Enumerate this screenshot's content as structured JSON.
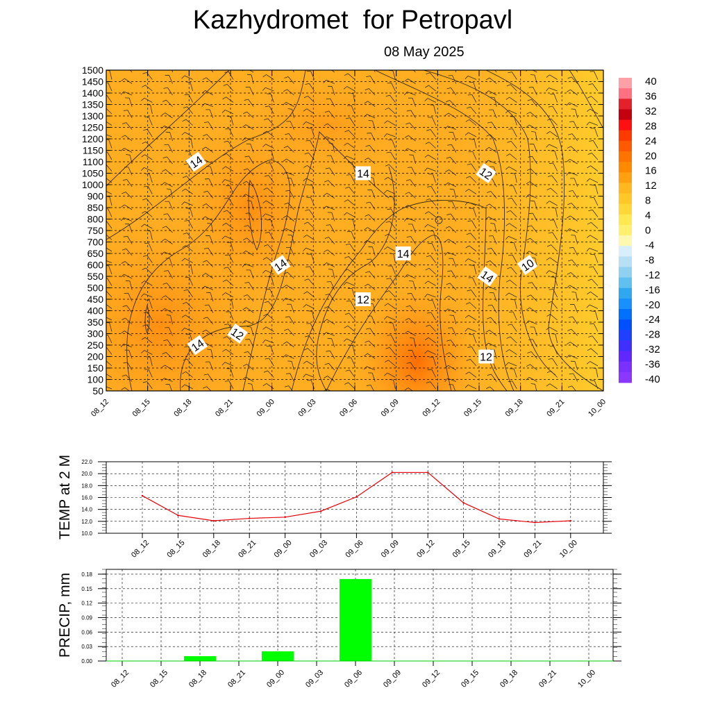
{
  "title": "Kazhydromet  for Petropavl",
  "date": "08 May 2025",
  "chart_data": [
    {
      "type": "heatmap",
      "description_type": "contour",
      "x_ticks": [
        "08_12",
        "08_15",
        "08_18",
        "08_21",
        "09_00",
        "09_03",
        "09_06",
        "09_09",
        "09_12",
        "09_15",
        "09_18",
        "09_21",
        "10_00"
      ],
      "y_ticks": [
        50,
        100,
        150,
        200,
        250,
        300,
        350,
        400,
        450,
        500,
        550,
        600,
        650,
        700,
        750,
        800,
        850,
        900,
        1000,
        1050,
        1100,
        1150,
        1200,
        1250,
        1300,
        1350,
        1400,
        1450,
        1500
      ],
      "colorbar": {
        "ticks": [
          40,
          36,
          32,
          28,
          24,
          20,
          16,
          12,
          8,
          4,
          0,
          -4,
          -8,
          -12,
          -16,
          -20,
          -24,
          -28,
          -32,
          -36,
          -40
        ],
        "colors": {
          "warm_high": "#ff6a00",
          "warm_mid": "#ffa020",
          "warm_low": "#ffd030",
          "cold": "#6633ff"
        }
      },
      "contour_labels": [
        {
          "text": "14",
          "x": "08_18",
          "y": 1100
        },
        {
          "text": "14",
          "x": "09_06",
          "y": 1050
        },
        {
          "text": "12",
          "x": "09_15",
          "y": 1050
        },
        {
          "text": "14",
          "x": "09_00",
          "y": 600
        },
        {
          "text": "14",
          "x": "09_09",
          "y": 650
        },
        {
          "text": "14",
          "x": "09_15",
          "y": 550
        },
        {
          "text": "10",
          "x": "09_18",
          "y": 600
        },
        {
          "text": "12",
          "x": "09_06",
          "y": 450
        },
        {
          "text": "12",
          "x": "08_21",
          "y": 300
        },
        {
          "text": "14",
          "x": "08_18",
          "y": 250
        },
        {
          "text": "12",
          "x": "09_15",
          "y": 200
        }
      ]
    },
    {
      "type": "line",
      "ylabel": "TEMP at 2 M",
      "x": [
        "08_12",
        "08_15",
        "08_18",
        "08_21",
        "09_00",
        "09_03",
        "09_06",
        "09_09",
        "09_12",
        "09_15",
        "09_18",
        "09_21",
        "10_00"
      ],
      "values": [
        16.3,
        13.0,
        12.1,
        12.5,
        12.7,
        13.7,
        16.1,
        20.2,
        20.2,
        15.1,
        12.4,
        11.8,
        12.1
      ],
      "ylim": [
        10.0,
        22.0
      ],
      "y_ticks": [
        "10.0",
        "12.0",
        "14.0",
        "16.0",
        "18.0",
        "20.0",
        "22.0"
      ],
      "color": "#e8000b"
    },
    {
      "type": "bar",
      "ylabel": "PRECIP, mm",
      "categories": [
        "08_12",
        "08_15",
        "08_18",
        "08_21",
        "09_00",
        "09_03",
        "09_06",
        "09_09",
        "09_12",
        "09_15",
        "09_18",
        "09_21",
        "10_00"
      ],
      "values": [
        0,
        0,
        0.01,
        0,
        0.02,
        0,
        0.17,
        0,
        0,
        0,
        0,
        0,
        0
      ],
      "ylim": [
        0,
        0.19
      ],
      "y_ticks": [
        "0.00",
        "0.03",
        "0.06",
        "0.09",
        "0.12",
        "0.15",
        "0.18"
      ],
      "color": "#00ff00"
    }
  ]
}
